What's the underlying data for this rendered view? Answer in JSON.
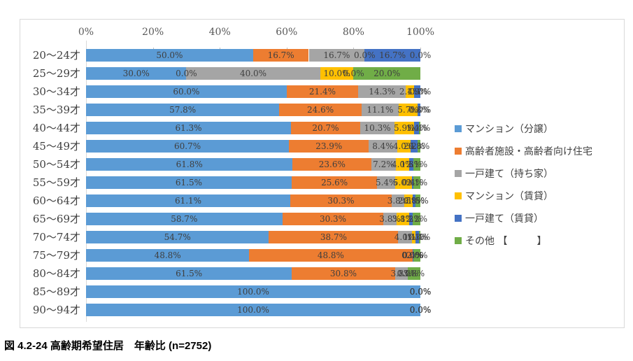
{
  "caption": "図 4.2-24 高齢期希望住居　年齢比 (n=2752)",
  "colors": {
    "border": "#d9d9d9",
    "axis_text": "#595959",
    "label_text": "#3f3f3f"
  },
  "chart_data": {
    "type": "bar",
    "variant": "100%-stacked-horizontal",
    "title": "",
    "xlabel": "",
    "ylabel": "",
    "xlim": [
      0,
      100
    ],
    "x_ticks": [
      "0%",
      "20%",
      "40%",
      "60%",
      "80%",
      "100%"
    ],
    "grid": false,
    "data_labels": true,
    "legend_position": "right",
    "categories": [
      "20〜24才",
      "25〜29才",
      "30〜34才",
      "35〜39才",
      "40〜44才",
      "45〜49才",
      "50〜54才",
      "55〜59才",
      "60〜64才",
      "65〜69才",
      "70〜74才",
      "75〜79才",
      "80〜84才",
      "85〜89才",
      "90〜94才"
    ],
    "series": [
      {
        "name": "マンション（分譲）",
        "color": "#5b9bd5",
        "values": [
          50.0,
          30.0,
          60.0,
          57.8,
          61.3,
          60.7,
          61.8,
          61.5,
          61.1,
          58.7,
          54.7,
          48.8,
          61.5,
          100.0,
          100.0
        ]
      },
      {
        "name": "高齢者施設・高齢者向け住宅",
        "color": "#ed7d31",
        "values": [
          16.7,
          0.0,
          21.4,
          24.6,
          20.7,
          23.9,
          23.6,
          25.6,
          30.3,
          30.3,
          38.7,
          48.8,
          30.8,
          0.0,
          0.0
        ]
      },
      {
        "name": "一戸建て（持ち家）",
        "color": "#a5a5a5",
        "values": [
          16.7,
          40.0,
          14.3,
          11.1,
          10.3,
          8.4,
          7.2,
          5.4,
          3.8,
          3.8,
          4.0,
          0.0,
          3.8,
          0.0,
          0.0
        ]
      },
      {
        "name": "マンション（賃貸）",
        "color": "#ffc000",
        "values": [
          0.0,
          10.0,
          2.4,
          5.7,
          5.9,
          4.0,
          4.0,
          5.0,
          2.5,
          3.8,
          1.1,
          0.0,
          0.0,
          0.0,
          0.0
        ]
      },
      {
        "name": "一戸建て（賃貸）",
        "color": "#4472c4",
        "values": [
          16.7,
          0.0,
          1.9,
          0.8,
          1.4,
          2.2,
          1.3,
          0.4,
          0.8,
          1.2,
          1.1,
          0.4,
          0.0,
          0.0,
          0.0
        ]
      },
      {
        "name": "その他 【　　　】",
        "color": "#70ad47",
        "values": [
          0.0,
          20.0,
          0.0,
          0.0,
          0.4,
          0.8,
          2.1,
          2.1,
          1.5,
          2.2,
          0.4,
          2.0,
          3.8,
          0.0,
          0.0
        ]
      }
    ]
  }
}
